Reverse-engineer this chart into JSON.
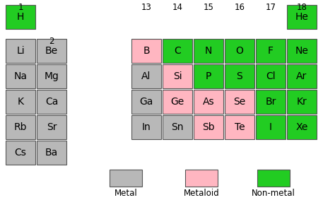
{
  "background_color": "#ffffff",
  "metal_color": "#b8b8b8",
  "metaloid_color": "#ffb6c1",
  "nonmetal_color": "#22cc22",
  "elements": [
    {
      "symbol": "H",
      "row": 0,
      "col": 0,
      "type": "nonmetal"
    },
    {
      "symbol": "He",
      "row": 0,
      "col": 7,
      "type": "nonmetal"
    },
    {
      "symbol": "Li",
      "row": 1,
      "col": 0,
      "type": "metal"
    },
    {
      "symbol": "Be",
      "row": 1,
      "col": 1,
      "type": "metal"
    },
    {
      "symbol": "B",
      "row": 1,
      "col": 2,
      "type": "metaloid"
    },
    {
      "symbol": "C",
      "row": 1,
      "col": 3,
      "type": "nonmetal"
    },
    {
      "symbol": "N",
      "row": 1,
      "col": 4,
      "type": "nonmetal"
    },
    {
      "symbol": "O",
      "row": 1,
      "col": 5,
      "type": "nonmetal"
    },
    {
      "symbol": "F",
      "row": 1,
      "col": 6,
      "type": "nonmetal"
    },
    {
      "symbol": "Ne",
      "row": 1,
      "col": 7,
      "type": "nonmetal"
    },
    {
      "symbol": "Na",
      "row": 2,
      "col": 0,
      "type": "metal"
    },
    {
      "symbol": "Mg",
      "row": 2,
      "col": 1,
      "type": "metal"
    },
    {
      "symbol": "Al",
      "row": 2,
      "col": 2,
      "type": "metal"
    },
    {
      "symbol": "Si",
      "row": 2,
      "col": 3,
      "type": "metaloid"
    },
    {
      "symbol": "P",
      "row": 2,
      "col": 4,
      "type": "nonmetal"
    },
    {
      "symbol": "S",
      "row": 2,
      "col": 5,
      "type": "nonmetal"
    },
    {
      "symbol": "Cl",
      "row": 2,
      "col": 6,
      "type": "nonmetal"
    },
    {
      "symbol": "Ar",
      "row": 2,
      "col": 7,
      "type": "nonmetal"
    },
    {
      "symbol": "K",
      "row": 3,
      "col": 0,
      "type": "metal"
    },
    {
      "symbol": "Ca",
      "row": 3,
      "col": 1,
      "type": "metal"
    },
    {
      "symbol": "Ga",
      "row": 3,
      "col": 2,
      "type": "metal"
    },
    {
      "symbol": "Ge",
      "row": 3,
      "col": 3,
      "type": "metaloid"
    },
    {
      "symbol": "As",
      "row": 3,
      "col": 4,
      "type": "metaloid"
    },
    {
      "symbol": "Se",
      "row": 3,
      "col": 5,
      "type": "metaloid"
    },
    {
      "symbol": "Br",
      "row": 3,
      "col": 6,
      "type": "nonmetal"
    },
    {
      "symbol": "Kr",
      "row": 3,
      "col": 7,
      "type": "nonmetal"
    },
    {
      "symbol": "Rb",
      "row": 4,
      "col": 0,
      "type": "metal"
    },
    {
      "symbol": "Sr",
      "row": 4,
      "col": 1,
      "type": "metal"
    },
    {
      "symbol": "In",
      "row": 4,
      "col": 2,
      "type": "metal"
    },
    {
      "symbol": "Sn",
      "row": 4,
      "col": 3,
      "type": "metal"
    },
    {
      "symbol": "Sb",
      "row": 4,
      "col": 4,
      "type": "metaloid"
    },
    {
      "symbol": "Te",
      "row": 4,
      "col": 5,
      "type": "metaloid"
    },
    {
      "symbol": "I",
      "row": 4,
      "col": 6,
      "type": "nonmetal"
    },
    {
      "symbol": "Xe",
      "row": 4,
      "col": 7,
      "type": "nonmetal"
    },
    {
      "symbol": "Cs",
      "row": 5,
      "col": 0,
      "type": "metal"
    },
    {
      "symbol": "Ba",
      "row": 5,
      "col": 1,
      "type": "metal"
    }
  ],
  "group_headers": [
    {
      "label": "1",
      "col": 0,
      "row_ref": "top"
    },
    {
      "label": "2",
      "col": 1,
      "row_ref": "metals_top"
    },
    {
      "label": "13",
      "col": 2,
      "row_ref": "top"
    },
    {
      "label": "14",
      "col": 3,
      "row_ref": "top"
    },
    {
      "label": "15",
      "col": 4,
      "row_ref": "top"
    },
    {
      "label": "16",
      "col": 5,
      "row_ref": "top"
    },
    {
      "label": "17",
      "col": 6,
      "row_ref": "top"
    },
    {
      "label": "18",
      "col": 7,
      "row_ref": "top"
    }
  ],
  "legend_items": [
    {
      "label": "Metal",
      "type": "metal"
    },
    {
      "label": "Metaloid",
      "type": "metaloid"
    },
    {
      "label": "Non-metal",
      "type": "nonmetal"
    }
  ]
}
